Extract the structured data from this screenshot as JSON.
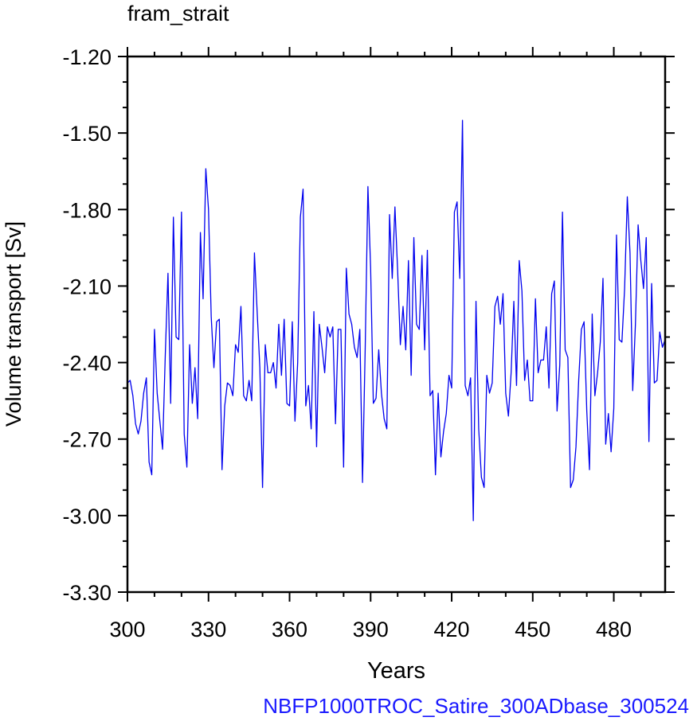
{
  "chart_title": "fram_strait",
  "footer_label": "NBFP1000TROC_Satire_300ADbase_300524",
  "colors": {
    "line": "#0000ee",
    "footer": "#1a1aff",
    "axis": "#000000"
  },
  "chart_data": {
    "type": "line",
    "title": "fram_strait",
    "xlabel": "Years",
    "ylabel": "Volume transport [Sv]",
    "xlim": [
      300,
      499
    ],
    "ylim": [
      -3.3,
      -1.2
    ],
    "xticks": [
      300,
      330,
      360,
      390,
      420,
      450,
      480
    ],
    "xtick_labels": [
      "300",
      "330",
      "360",
      "390",
      "420",
      "450",
      "480"
    ],
    "yticks": [
      -1.2,
      -1.5,
      -1.8,
      -2.1,
      -2.4,
      -2.7,
      -3.0,
      -3.3
    ],
    "ytick_labels": [
      "-1.20",
      "-1.50",
      "-1.80",
      "-2.10",
      "-2.40",
      "-2.70",
      "-3.00",
      "-3.30"
    ],
    "grid": false,
    "series": [
      {
        "x_start": 300,
        "x_step": 1,
        "values": [
          -2.48,
          -2.47,
          -2.53,
          -2.64,
          -2.68,
          -2.63,
          -2.52,
          -2.46,
          -2.79,
          -2.84,
          -2.27,
          -2.52,
          -2.63,
          -2.74,
          -2.37,
          -2.05,
          -2.56,
          -1.83,
          -2.3,
          -2.31,
          -1.81,
          -2.68,
          -2.81,
          -2.33,
          -2.56,
          -2.42,
          -2.62,
          -1.89,
          -2.15,
          -1.64,
          -1.8,
          -2.22,
          -2.42,
          -2.24,
          -2.23,
          -2.82,
          -2.57,
          -2.48,
          -2.49,
          -2.53,
          -2.33,
          -2.36,
          -2.18,
          -2.53,
          -2.55,
          -2.47,
          -2.55,
          -1.97,
          -2.2,
          -2.42,
          -2.89,
          -2.33,
          -2.44,
          -2.44,
          -2.4,
          -2.5,
          -2.25,
          -2.45,
          -2.23,
          -2.56,
          -2.57,
          -2.24,
          -2.63,
          -2.4,
          -1.83,
          -1.72,
          -2.57,
          -2.49,
          -2.66,
          -2.2,
          -2.73,
          -2.25,
          -2.34,
          -2.44,
          -2.26,
          -2.3,
          -2.26,
          -2.64,
          -2.27,
          -2.27,
          -2.81,
          -2.03,
          -2.21,
          -2.25,
          -2.34,
          -2.38,
          -2.27,
          -2.87,
          -2.34,
          -1.71,
          -2.03,
          -2.56,
          -2.54,
          -2.35,
          -2.52,
          -2.62,
          -2.66,
          -1.82,
          -2.07,
          -1.79,
          -2.04,
          -2.33,
          -2.18,
          -2.35,
          -2.0,
          -2.45,
          -1.91,
          -2.25,
          -2.27,
          -1.98,
          -2.35,
          -1.96,
          -2.53,
          -2.51,
          -2.84,
          -2.52,
          -2.77,
          -2.67,
          -2.6,
          -2.45,
          -2.5,
          -1.81,
          -1.77,
          -2.07,
          -1.45,
          -2.49,
          -2.53,
          -2.46,
          -3.02,
          -2.16,
          -2.66,
          -2.85,
          -2.89,
          -2.45,
          -2.52,
          -2.48,
          -2.18,
          -2.14,
          -2.25,
          -2.13,
          -2.52,
          -2.61,
          -2.44,
          -2.16,
          -2.49,
          -2.0,
          -2.12,
          -2.47,
          -2.39,
          -2.55,
          -2.55,
          -2.15,
          -2.44,
          -2.39,
          -2.39,
          -2.26,
          -2.5,
          -2.13,
          -2.08,
          -2.59,
          -2.41,
          -1.81,
          -2.35,
          -2.38,
          -2.89,
          -2.86,
          -2.73,
          -2.47,
          -2.27,
          -2.24,
          -2.59,
          -2.82,
          -2.21,
          -2.53,
          -2.44,
          -2.32,
          -2.07,
          -2.72,
          -2.6,
          -2.75,
          -2.58,
          -1.9,
          -2.31,
          -2.32,
          -2.11,
          -1.75,
          -1.97,
          -2.51,
          -2.25,
          -1.86,
          -2.0,
          -2.11,
          -1.91,
          -2.71,
          -2.09,
          -2.48,
          -2.47,
          -2.28,
          -2.34,
          -2.31
        ]
      }
    ]
  }
}
